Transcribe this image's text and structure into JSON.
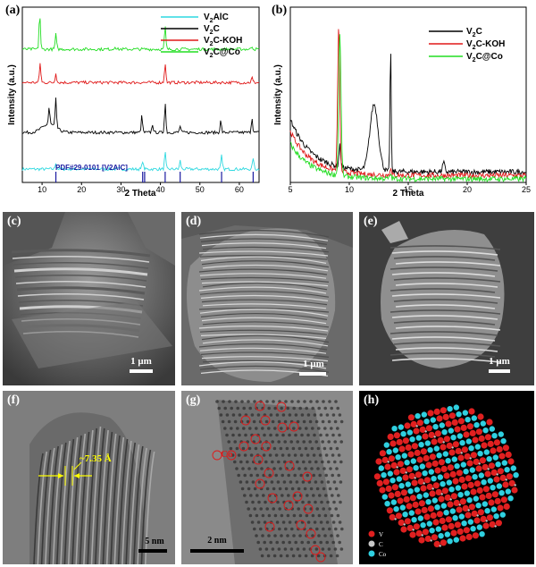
{
  "panels": {
    "a": "(a)",
    "b": "(b)",
    "c": "(c)",
    "d": "(d)",
    "e": "(e)",
    "f": "(f)",
    "g": "(g)",
    "h": "(h)"
  },
  "chart_a": {
    "type": "line",
    "xlabel": "2 Theta",
    "ylabel": "Intensity (a.u.)",
    "xlim": [
      5,
      65
    ],
    "xticks": [
      10,
      20,
      30,
      40,
      50,
      60
    ],
    "annotation": "PDF#29-0101 [V2AlC]",
    "reference_sticks": [
      13.5,
      35.5,
      36,
      41.2,
      45,
      55.5,
      63.5
    ],
    "series": [
      {
        "name": "V2AlC",
        "color": "#2fd9e0",
        "baseline": 0.08,
        "peaks": [
          [
            13.5,
            0.04
          ],
          [
            35.5,
            0.05
          ],
          [
            41.2,
            0.1
          ],
          [
            45,
            0.05
          ],
          [
            55.5,
            0.08
          ],
          [
            63.5,
            0.07
          ]
        ]
      },
      {
        "name": "V2C",
        "color": "#000000",
        "baseline": 0.3,
        "peaks": [
          [
            11.8,
            0.1
          ],
          [
            13.5,
            0.17
          ],
          [
            35.3,
            0.1
          ],
          [
            38,
            0.05
          ],
          [
            41.2,
            0.18
          ],
          [
            45,
            0.04
          ],
          [
            55.3,
            0.07
          ],
          [
            63.2,
            0.09
          ]
        ]
      },
      {
        "name": "V2C-KOH",
        "color": "#e01818",
        "baseline": 0.6,
        "peaks": [
          [
            9.5,
            0.12
          ],
          [
            13.5,
            0.06
          ],
          [
            41.2,
            0.12
          ],
          [
            63.2,
            0.03
          ]
        ]
      },
      {
        "name": "V2C@Co",
        "color": "#22dd22",
        "baseline": 0.8,
        "peaks": [
          [
            9.4,
            0.22
          ],
          [
            13.5,
            0.09
          ],
          [
            28.5,
            0.02
          ],
          [
            41.2,
            0.14
          ],
          [
            63.2,
            0.02
          ]
        ]
      }
    ]
  },
  "chart_b": {
    "type": "line",
    "xlabel": "2 Theta",
    "ylabel": "Intensity (a.u.)",
    "xlim": [
      5,
      25
    ],
    "xticks": [
      5,
      10,
      15,
      20,
      25
    ],
    "series": [
      {
        "name": "V2C",
        "color": "#000000",
        "peaks": [
          [
            12.1,
            0.38,
            0.7
          ],
          [
            13.5,
            0.72,
            0.1
          ],
          [
            9.2,
            0.12,
            0.15
          ],
          [
            18,
            0.05,
            0.2
          ]
        ]
      },
      {
        "name": "V2C-KOH",
        "color": "#e01818",
        "peaks": [
          [
            9.1,
            0.82,
            0.18
          ],
          [
            13.5,
            0.05,
            0.1
          ]
        ]
      },
      {
        "name": "V2C@Co",
        "color": "#22dd22",
        "peaks": [
          [
            9.2,
            0.8,
            0.2
          ],
          [
            13.5,
            0.03,
            0.1
          ]
        ]
      }
    ]
  },
  "sem": {
    "c_scale": "1 μm",
    "d_scale": "1 μm",
    "e_scale": "1 μm"
  },
  "tem": {
    "f_annotation": "~7.35 Å",
    "f_scale": "5 nm",
    "g_label": "Co",
    "g_scale": "2 nm"
  },
  "model": {
    "legend": [
      "V",
      "C",
      "Co"
    ],
    "colors": {
      "V": "#e02020",
      "C": "#c8c8c8",
      "Co": "#2fd0e0"
    }
  }
}
